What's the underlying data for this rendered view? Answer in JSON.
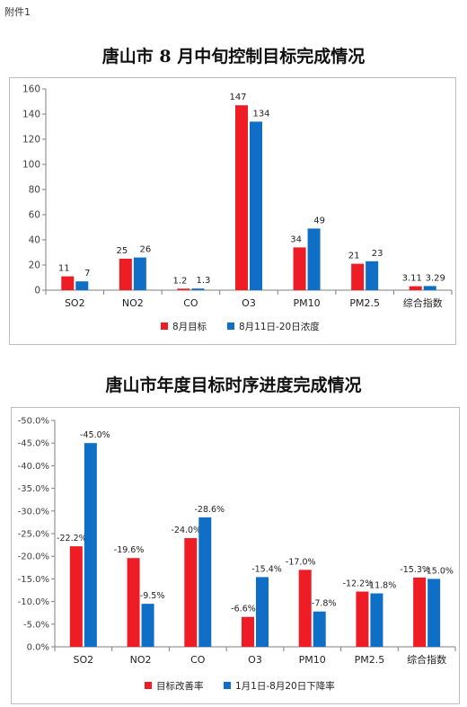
{
  "attachment_label": "附件1",
  "colors": {
    "series1": "#ee1c25",
    "series2": "#0f6fc6",
    "axis": "#7f7f7f",
    "text": "#404040"
  },
  "chart_data": [
    {
      "type": "bar",
      "title": "唐山市 8 月中旬控制目标完成情况",
      "categories": [
        "SO2",
        "NO2",
        "CO",
        "O3",
        "PM10",
        "PM2.5",
        "综合指数"
      ],
      "series": [
        {
          "name": "8月目标",
          "values": [
            11,
            25,
            1.2,
            147,
            34,
            21,
            3.11
          ],
          "labels": [
            "11",
            "25",
            "1.2",
            "147",
            "34",
            "21",
            "3.11"
          ]
        },
        {
          "name": "8月11日-20日浓度",
          "values": [
            7,
            26,
            1.3,
            134,
            49,
            23,
            3.29
          ],
          "labels": [
            "7",
            "26",
            "1.3",
            "134",
            "49",
            "23",
            "3.29"
          ]
        }
      ],
      "ylim": [
        0,
        160
      ],
      "yticks": [
        "0",
        "20",
        "40",
        "60",
        "80",
        "100",
        "120",
        "140",
        "160"
      ],
      "legend": "bottom"
    },
    {
      "type": "bar",
      "title": "唐山市年度目标时序进度完成情况",
      "categories": [
        "SO2",
        "NO2",
        "CO",
        "O3",
        "PM10",
        "PM2.5",
        "综合指数"
      ],
      "series": [
        {
          "name": "目标改善率",
          "values": [
            -22.2,
            -19.6,
            -24.0,
            -6.6,
            -17.0,
            -12.2,
            -15.3
          ],
          "labels": [
            "-22.2%",
            "-19.6%",
            "-24.0%",
            "-6.6%",
            "-17.0%",
            "-12.2%",
            "-15.3%"
          ]
        },
        {
          "name": "1月1日-8月20日下降率",
          "values": [
            -45.0,
            -9.5,
            -28.6,
            -15.4,
            -7.8,
            -11.8,
            -15.0
          ],
          "labels": [
            "-45.0%",
            "-9.5%",
            "-28.6%",
            "-15.4%",
            "-7.8%",
            "-11.8%",
            "-15.0%"
          ]
        }
      ],
      "ylim": [
        0,
        -50
      ],
      "y_axis_reversed": true,
      "yticks": [
        "0.0%",
        "-5.0%",
        "-10.0%",
        "-15.0%",
        "-20.0%",
        "-25.0%",
        "-30.0%",
        "-35.0%",
        "-40.0%",
        "-45.0%",
        "-50.0%"
      ],
      "legend": "bottom"
    }
  ]
}
